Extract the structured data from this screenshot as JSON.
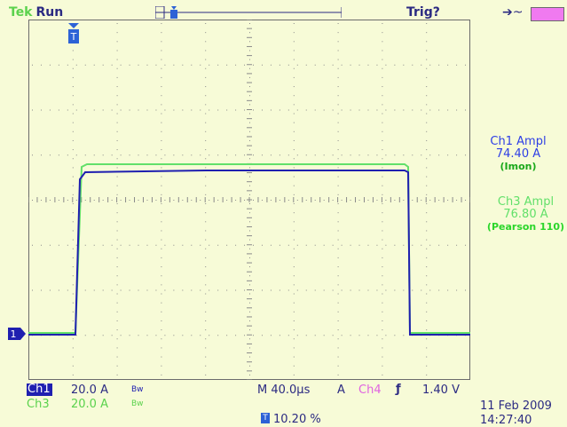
{
  "status": {
    "brand": "Tek",
    "run_state": "Run",
    "trigger_state": "Trig?",
    "trigger_arrow": "➔~"
  },
  "markers": {
    "trigger_marker": "T",
    "ch1_ground_marker": "1"
  },
  "measurements": {
    "ch1": {
      "title": "Ch1 Ampl",
      "value": "74.40 A",
      "note": "(Imon)"
    },
    "ch3": {
      "title": "Ch3 Ampl",
      "value": "76.80 A",
      "note": "(Pearson 110)"
    }
  },
  "readout": {
    "ch1_label": "Ch1",
    "ch1_scale": "20.0 A",
    "ch1_bw": "Bw",
    "ch3_label": "Ch3",
    "ch3_scale": "20.0 A",
    "ch3_bw": "Bw",
    "timebase": "M 40.0µs",
    "trig_prefix": "A",
    "trig_source": "Ch4",
    "trig_slope": "ƒ",
    "trig_level": "1.40 V",
    "position_icon": "T",
    "horizontal_position": "10.20 %",
    "date": "11 Feb 2009",
    "time": "14:27:40"
  },
  "colors": {
    "background": "#f7fbd7",
    "ch1": "#1f1fb0",
    "ch3": "#62e06a",
    "ch4": "#e063e0",
    "text": "#2b2a82"
  },
  "icons": {
    "trigger_point": "trigger-t-icon",
    "ground": "ground-marker-icon",
    "probe": "probe-icon"
  }
}
